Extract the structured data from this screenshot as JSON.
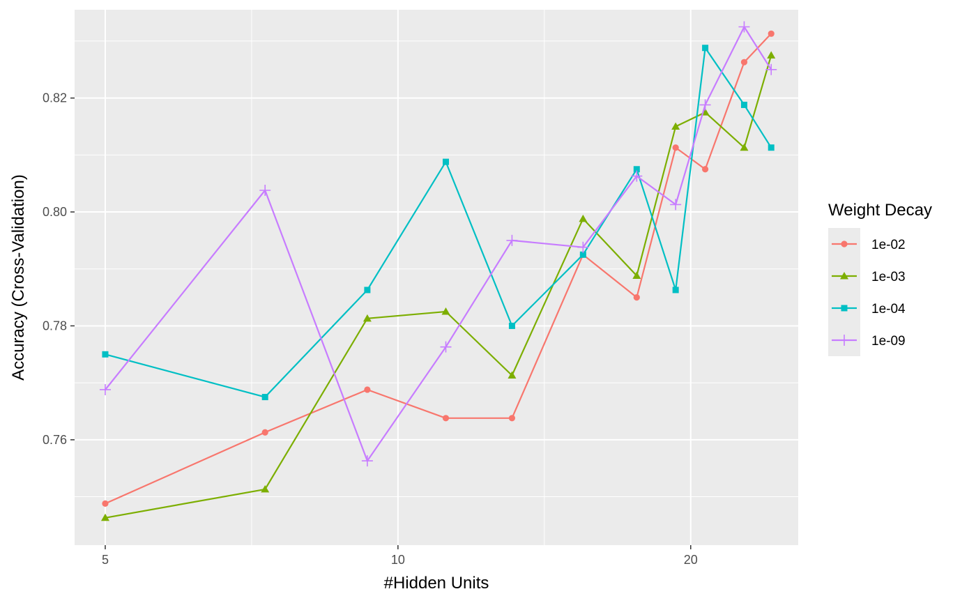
{
  "chart_data": {
    "type": "line",
    "xlabel": "#Hidden Units",
    "ylabel": "Accuracy (Cross-Validation)",
    "x_scale": "log",
    "xlim": [
      4.65,
      25.8
    ],
    "ylim": [
      0.7415,
      0.8355
    ],
    "x_ticks": [
      5,
      10,
      20
    ],
    "x_tick_labels": [
      "5",
      "10",
      "20"
    ],
    "y_ticks": [
      0.76,
      0.78,
      0.8,
      0.82
    ],
    "y_tick_labels": [
      "0.76",
      "0.78",
      "0.80",
      "0.82"
    ],
    "grid": true,
    "legend": {
      "title": "Weight Decay",
      "position": "right"
    },
    "series": [
      {
        "name": "1e-02",
        "color": "#F8766D",
        "marker": "circle",
        "x": [
          5,
          7.3,
          9.3,
          11.2,
          13.1,
          15.5,
          17.6,
          19.3,
          20.7,
          22.7,
          24.2
        ],
        "values": [
          0.7488,
          0.7613,
          0.7688,
          0.7638,
          0.7638,
          0.7925,
          0.785,
          0.8113,
          0.8075,
          0.8263,
          0.8313
        ]
      },
      {
        "name": "1e-03",
        "color": "#7CAE00",
        "marker": "triangle",
        "x": [
          5,
          7.3,
          9.3,
          11.2,
          13.1,
          15.5,
          17.6,
          19.3,
          20.7,
          22.7,
          24.2
        ],
        "values": [
          0.7463,
          0.7513,
          0.7813,
          0.7825,
          0.7713,
          0.7988,
          0.7888,
          0.815,
          0.8175,
          0.8113,
          0.8275
        ]
      },
      {
        "name": "1e-04",
        "color": "#00BFC4",
        "marker": "square",
        "x": [
          5,
          7.3,
          9.3,
          11.2,
          13.1,
          15.5,
          17.6,
          19.3,
          20.7,
          22.7,
          24.2
        ],
        "values": [
          0.775,
          0.7675,
          0.7863,
          0.8088,
          0.78,
          0.7925,
          0.8075,
          0.7863,
          0.8288,
          0.8188,
          0.8113
        ]
      },
      {
        "name": "1e-09",
        "color": "#C77CFF",
        "marker": "plus",
        "x": [
          5,
          7.3,
          9.3,
          11.2,
          13.1,
          15.5,
          17.6,
          19.3,
          20.7,
          22.7,
          24.2
        ],
        "values": [
          0.7688,
          0.8038,
          0.7563,
          0.7763,
          0.795,
          0.7938,
          0.8063,
          0.8013,
          0.8188,
          0.8325,
          0.825
        ]
      }
    ]
  }
}
